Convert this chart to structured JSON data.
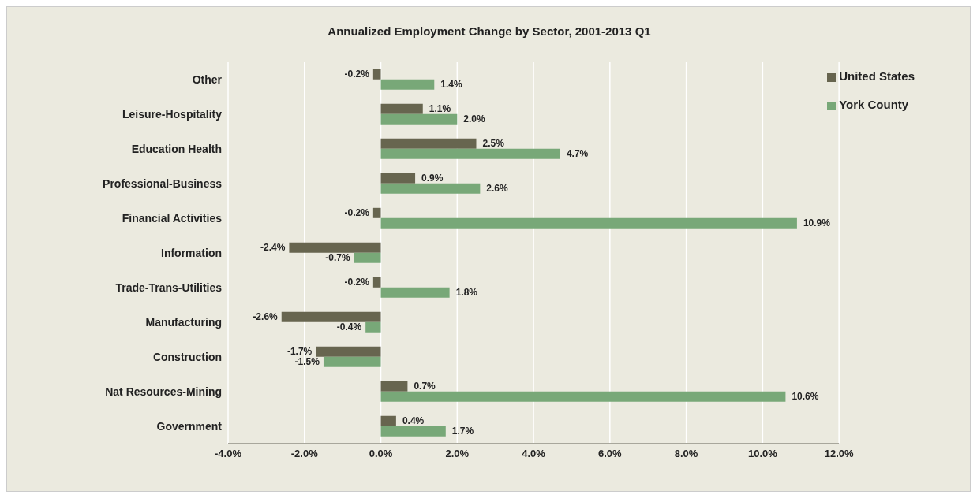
{
  "chart_data": {
    "type": "bar",
    "orientation": "horizontal",
    "title": "Annualized Employment Change by Sector, 2001-2013  Q1",
    "categories": [
      "Other",
      "Leisure-Hospitality",
      "Education Health",
      "Professional-Business",
      "Financial Activities",
      "Information",
      "Trade-Trans-Utilities",
      "Manufacturing",
      "Construction",
      "Nat Resources-Mining",
      "Government"
    ],
    "series": [
      {
        "name": "United States",
        "color": "#67654f",
        "values": [
          -0.2,
          1.1,
          2.5,
          0.9,
          -0.2,
          -2.4,
          -0.2,
          -2.6,
          -1.7,
          0.7,
          0.4
        ],
        "value_labels": [
          "-0.2%",
          "1.1%",
          "2.5%",
          "0.9%",
          "-0.2%",
          "-2.4%",
          "-0.2%",
          "-2.6%",
          "-1.7%",
          "0.7%",
          "0.4%"
        ]
      },
      {
        "name": "York County",
        "color": "#78a878",
        "values": [
          1.4,
          2.0,
          4.7,
          2.6,
          10.9,
          -0.7,
          1.8,
          -0.4,
          -1.5,
          10.6,
          1.7
        ],
        "value_labels": [
          "1.4%",
          "2.0%",
          "4.7%",
          "2.6%",
          "10.9%",
          "-0.7%",
          "1.8%",
          "-0.4%",
          "-1.5%",
          "10.6%",
          "1.7%"
        ]
      }
    ],
    "xlim": [
      -4,
      12
    ],
    "xticks": [
      {
        "value": -4,
        "label": "-4.0%"
      },
      {
        "value": -2,
        "label": "-2.0%"
      },
      {
        "value": 0,
        "label": "0.0%"
      },
      {
        "value": 2,
        "label": "2.0%"
      },
      {
        "value": 4,
        "label": "4.0%"
      },
      {
        "value": 6,
        "label": "6.0%"
      },
      {
        "value": 8,
        "label": "8.0%"
      },
      {
        "value": 10,
        "label": "10.0%"
      },
      {
        "value": 12,
        "label": "12.0%"
      }
    ],
    "grid": "x",
    "legend": "top right"
  }
}
